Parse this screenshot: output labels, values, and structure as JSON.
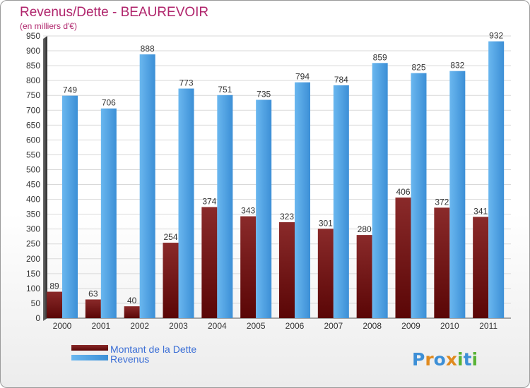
{
  "chart_data": {
    "type": "bar",
    "title": "Revenus/Dette - BEAUREVOIR",
    "subtitle": "(en milliers d'€)",
    "categories": [
      "2000",
      "2001",
      "2002",
      "2003",
      "2004",
      "2005",
      "2006",
      "2007",
      "2008",
      "2009",
      "2010",
      "2011"
    ],
    "series": [
      {
        "name": "Montant de la Dette",
        "color": "#7a1414",
        "values": [
          89,
          63,
          40,
          254,
          374,
          343,
          323,
          301,
          280,
          406,
          372,
          341
        ]
      },
      {
        "name": "Revenus",
        "color": "#4a9fe0",
        "values": [
          749,
          706,
          888,
          773,
          751,
          735,
          794,
          784,
          859,
          825,
          832,
          932
        ]
      }
    ],
    "ylim": [
      0,
      950
    ],
    "ytick_step": 50,
    "grid": true,
    "legend_position": "bottom-left"
  },
  "logo": {
    "text": "Proxiti",
    "letters": [
      "P",
      "r",
      "o",
      "x",
      "i",
      "t",
      "i"
    ],
    "colors": [
      "#3d8fd6",
      "#e08a1e",
      "#3d8fd6",
      "#e08a1e",
      "#59b336",
      "#3d8fd6",
      "#59b336"
    ]
  }
}
